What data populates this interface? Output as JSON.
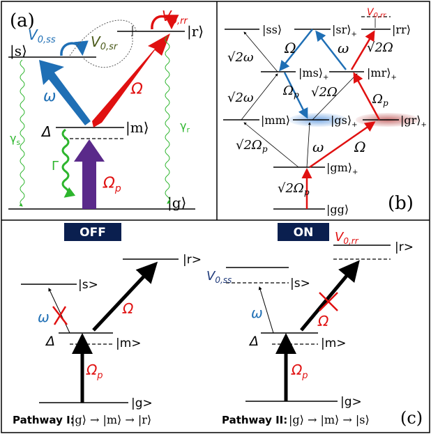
{
  "panel_a": {
    "label": "(a)",
    "ket_s": "|s⟩",
    "ket_r": "|r⟩",
    "ket_m": "|m⟩",
    "ket_g": "|g⟩",
    "v0ss": "V",
    "v0ss_sub": "0,ss",
    "v0sr": "V",
    "v0sr_sub": "0,sr",
    "v0rr": "V",
    "v0rr_sub": "0,rr",
    "omega": "ω",
    "Omega": "Ω",
    "Omega_p": "Ω",
    "Omega_p_sub": "p",
    "Delta": "Δ",
    "Gamma": "Γ",
    "gamma_s": "γ",
    "gamma_s_sub": "s",
    "gamma_r": "γ",
    "gamma_r_sub": "r",
    "colors": {
      "blue": "#1f6fb5",
      "red": "#e01010",
      "purple": "#5a2a8a",
      "green": "#2db52d",
      "olive": "#4a5a1a"
    }
  },
  "panel_b": {
    "label": "(b)",
    "ss": "|ss⟩",
    "sr": "|sr⟩",
    "sr_sub": "+",
    "rr": "|rr⟩",
    "v0rr": "V",
    "v0rr_sub": "0,rr",
    "ms": "|ms⟩",
    "ms_sub": "+",
    "mr": "|mr⟩",
    "mr_sub": "+",
    "mm": "|mm⟩",
    "gs": "|gs⟩",
    "gs_sub": "+",
    "gr": "|gr⟩",
    "gr_sub": "+",
    "gm": "|gm⟩",
    "gm_sub": "+",
    "gg": "|gg⟩",
    "l_sqrt2_omega_top": "√2ω",
    "l_Omega_top": "Ω",
    "l_omega_top": "ω",
    "l_sqrt2_Omega_top": "√2Ω",
    "l_Omegap_ms": "Ω",
    "l_Omegap_ms_sub": "p",
    "l_sqrt2_Omega_mid": "√2Ω",
    "l_sqrt2_omega_mid": "√2ω",
    "l_Omegap_mr": "Ω",
    "l_Omegap_mr_sub": "p",
    "l_sqrt2_Omegap_mm": "√2Ω",
    "l_sqrt2_Omegap_mm_sub": "p",
    "l_omega_gm": "ω",
    "l_Omega_gm": "Ω",
    "l_sqrt2_Omegap_gg": "√2Ω",
    "l_sqrt2_Omegap_gg_sub": "p"
  },
  "panel_c": {
    "label": "(c)",
    "off_badge": "OFF",
    "on_badge": "ON",
    "r": "|r>",
    "s": "|s>",
    "m": "|m>",
    "g": "|g>",
    "omega": "ω",
    "Omega": "Ω",
    "Omega_p": "Ω",
    "Omega_p_sub": "p",
    "Delta": "Δ",
    "v0ss": "V",
    "v0ss_sub": "0,ss",
    "v0rr": "V",
    "v0rr_sub": "0,rr",
    "pathway1_label": "Pathway I:",
    "pathway1_expr": "|g⟩ → |m⟩ → |r⟩",
    "pathway2_label": "Pathway II:",
    "pathway2_expr": "|g⟩ → |m⟩ → |s⟩",
    "badge_color": "#0a1f4f"
  }
}
